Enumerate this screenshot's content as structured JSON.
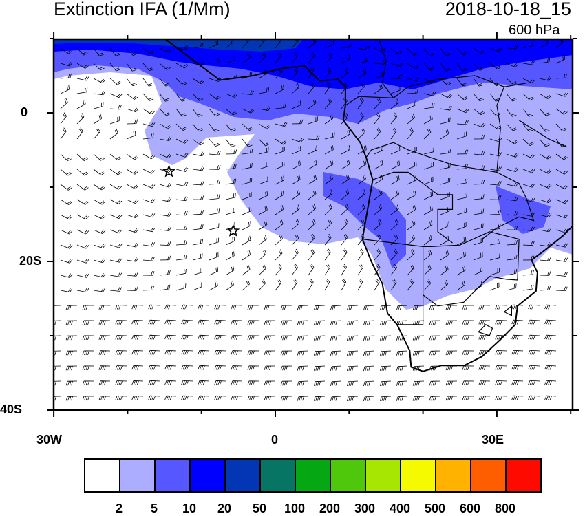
{
  "header": {
    "title": "Extinction IFA (1/Mm)",
    "datetime": "2018-10-18_15",
    "level": "600 hPa"
  },
  "map": {
    "lon_range": [
      "30W",
      "40E"
    ],
    "lat_range": [
      "40S",
      "10N"
    ],
    "y_tick_labels": [
      "0",
      "20S",
      "40S"
    ],
    "x_tick_labels": [
      "30W",
      "0",
      "30E"
    ],
    "overlays": [
      "wind-barbs",
      "coastlines",
      "country-borders"
    ],
    "markers": [
      {
        "icon": "star-icon",
        "lon": -14.4,
        "lat": -7.9
      },
      {
        "icon": "star-icon",
        "lon": -5.7,
        "lat": -15.9
      }
    ]
  },
  "colorbar": {
    "labels": [
      "2",
      "5",
      "10",
      "20",
      "50",
      "100",
      "200",
      "300",
      "400",
      "500",
      "600",
      "800"
    ],
    "colors": [
      "#ffffff",
      "#adadff",
      "#5757ff",
      "#0000ff",
      "#0336b5",
      "#067563",
      "#05a813",
      "#4fc70a",
      "#a6e602",
      "#f5fa00",
      "#ffb300",
      "#ff5e00",
      "#ff0a00"
    ]
  }
}
